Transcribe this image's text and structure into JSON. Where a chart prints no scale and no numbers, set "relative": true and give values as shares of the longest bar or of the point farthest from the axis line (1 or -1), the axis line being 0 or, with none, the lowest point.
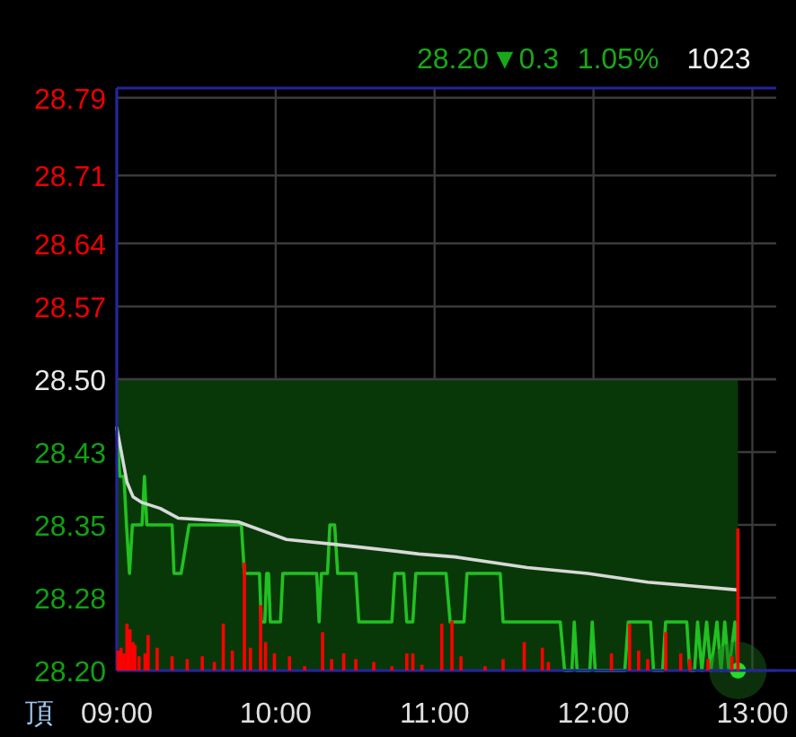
{
  "chart_data": [
    {
      "type": "line",
      "annotations": [
        "28.20",
        "▼0.3",
        "1.05%",
        "1023",
        "頂"
      ],
      "xlim": [
        9,
        13.15
      ],
      "xticks": [
        {
          "value": 9,
          "label": "09:00"
        },
        {
          "value": 10,
          "label": "10:00"
        },
        {
          "value": 11,
          "label": "11:00"
        },
        {
          "value": 12,
          "label": "12:00"
        },
        {
          "value": 13,
          "label": "13:00"
        }
      ],
      "ylim": [
        28.2,
        28.8
      ],
      "yticks": [
        {
          "value": 28.2,
          "label": "28.20"
        },
        {
          "value": 28.275,
          "label": "28.28"
        },
        {
          "value": 28.35,
          "label": "28.35"
        },
        {
          "value": 28.425,
          "label": "28.43"
        },
        {
          "value": 28.5,
          "label": "28.50"
        },
        {
          "value": 28.575,
          "label": "28.57"
        },
        {
          "value": 28.64,
          "label": "28.64"
        },
        {
          "value": 28.71,
          "label": "28.71"
        },
        {
          "value": 28.79,
          "label": "28.79"
        }
      ],
      "grid": true,
      "ref_lines": [
        {
          "axis": "y",
          "value": 28.5,
          "color": "#3c3c3c"
        }
      ],
      "series": [
        {
          "type": "area",
          "color": "#083808",
          "x": [
            9,
            12.909
          ],
          "values": [
            28.5,
            28.5
          ]
        },
        {
          "type": "line",
          "color": "#22c022",
          "x": [
            9,
            9.019,
            9.045,
            9.061,
            9.08,
            9.098,
            9.159,
            9.174,
            9.189,
            9.348,
            9.36,
            9.405,
            9.455,
            9.784,
            9.803,
            9.898,
            9.909,
            9.932,
            9.943,
            9.955,
            9.966,
            10.03,
            10.045,
            10.258,
            10.273,
            10.288,
            10.326,
            10.341,
            10.371,
            10.39,
            10.504,
            10.523,
            10.636,
            10.731,
            10.75,
            10.806,
            10.825,
            10.863,
            10.882,
            11.072,
            11.098,
            11.185,
            11.204,
            11.413,
            11.431,
            11.791,
            11.818,
            11.864,
            11.879,
            11.897,
            11.977,
            11.992,
            12.011,
            12.197,
            12.219,
            12.359,
            12.378,
            12.435,
            12.454,
            12.587,
            12.606,
            12.636,
            12.655,
            12.682,
            12.712,
            12.739,
            12.777,
            12.803,
            12.826,
            12.852,
            12.89,
            12.909
          ],
          "values": [
            28.45,
            28.4,
            28.4,
            28.35,
            28.3,
            28.35,
            28.35,
            28.4,
            28.35,
            28.35,
            28.3,
            28.3,
            28.35,
            28.35,
            28.3,
            28.3,
            28.25,
            28.25,
            28.3,
            28.3,
            28.25,
            28.25,
            28.3,
            28.3,
            28.25,
            28.3,
            28.3,
            28.35,
            28.35,
            28.3,
            28.3,
            28.25,
            28.25,
            28.25,
            28.3,
            28.3,
            28.25,
            28.25,
            28.3,
            28.3,
            28.25,
            28.25,
            28.3,
            28.3,
            28.25,
            28.25,
            28.2,
            28.2,
            28.25,
            28.2,
            28.2,
            28.25,
            28.2,
            28.2,
            28.25,
            28.25,
            28.2,
            28.2,
            28.25,
            28.25,
            28.2,
            28.2,
            28.25,
            28.2,
            28.25,
            28.2,
            28.25,
            28.2,
            28.25,
            28.2,
            28.25,
            28.2
          ]
        },
        {
          "type": "line",
          "color": "#d8d8d8",
          "x": [
            9,
            9.064,
            9.102,
            9.159,
            9.273,
            9.386,
            9.765,
            10.068,
            10.371,
            10.75,
            10.901,
            11.128,
            11.583,
            11.962,
            12.341,
            12.909
          ],
          "values": [
            28.45,
            28.394,
            28.379,
            28.373,
            28.367,
            28.357,
            28.353,
            28.335,
            28.33,
            28.323,
            28.32,
            28.317,
            28.306,
            28.3,
            28.291,
            28.283
          ]
        },
        {
          "type": "scatter",
          "color": "#22e022",
          "marker": "circle",
          "x": [
            12.909
          ],
          "values": [
            28.2
          ]
        }
      ]
    },
    {
      "type": "bar",
      "relative": true,
      "color": "#ff0000",
      "xlim": [
        9,
        13.15
      ],
      "tick_labels": false,
      "x": [
        9.008,
        9.027,
        9.045,
        9.064,
        9.083,
        9.102,
        9.114,
        9.14,
        9.178,
        9.197,
        9.254,
        9.348,
        9.443,
        9.538,
        9.614,
        9.67,
        9.727,
        9.803,
        9.841,
        9.905,
        9.936,
        9.992,
        10.087,
        10.182,
        10.295,
        10.352,
        10.428,
        10.504,
        10.617,
        10.731,
        10.825,
        10.863,
        10.92,
        11.045,
        11.109,
        11.166,
        11.318,
        11.431,
        11.564,
        11.678,
        11.716,
        12.113,
        12.227,
        12.284,
        12.341,
        12.455,
        12.549,
        12.606,
        12.72,
        12.871,
        12.909
      ],
      "values": [
        0.14,
        0.16,
        0.12,
        0.33,
        0.29,
        0.2,
        0.18,
        0.1,
        0.12,
        0.25,
        0.16,
        0.1,
        0.08,
        0.1,
        0.06,
        0.33,
        0.14,
        0.76,
        0.16,
        0.46,
        0.2,
        0.12,
        0.1,
        0.03,
        0.27,
        0.08,
        0.12,
        0.08,
        0.06,
        0.03,
        0.12,
        0.12,
        0.04,
        0.33,
        0.35,
        0.1,
        0.03,
        0.08,
        0.2,
        0.16,
        0.06,
        0.12,
        0.33,
        0.14,
        0.08,
        0.27,
        0.12,
        0.08,
        0.08,
        0.1,
        1
      ]
    }
  ]
}
